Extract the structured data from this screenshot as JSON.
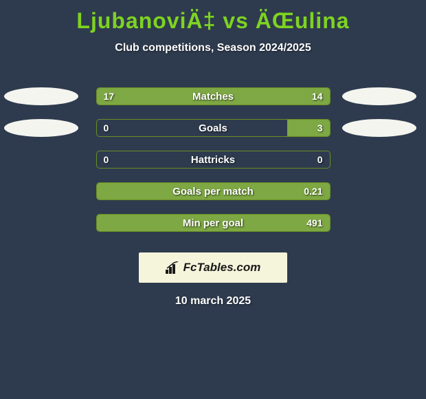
{
  "title": "LjubanoviÄ‡ vs ÄŒulina",
  "subtitle": "Club competitions, Season 2024/2025",
  "colors": {
    "background": "#2e3b4e",
    "accent": "#7ed321",
    "bar_fill": "#7da843",
    "bar_border": "#6b8e23",
    "ellipse": "#f5f5f0",
    "logo_bg": "#f5f5dc",
    "text": "#ffffff"
  },
  "stats": [
    {
      "label": "Matches",
      "left_value": "17",
      "right_value": "14",
      "left_fill_pct": 55,
      "right_fill_pct": 45,
      "show_ellipses": true
    },
    {
      "label": "Goals",
      "left_value": "0",
      "right_value": "3",
      "left_fill_pct": 0,
      "right_fill_pct": 18,
      "show_ellipses": true
    },
    {
      "label": "Hattricks",
      "left_value": "0",
      "right_value": "0",
      "left_fill_pct": 0,
      "right_fill_pct": 0,
      "show_ellipses": false
    },
    {
      "label": "Goals per match",
      "left_value": "",
      "right_value": "0.21",
      "left_fill_pct": 0,
      "right_fill_pct": 100,
      "show_ellipses": false
    },
    {
      "label": "Min per goal",
      "left_value": "",
      "right_value": "491",
      "left_fill_pct": 0,
      "right_fill_pct": 100,
      "show_ellipses": false
    }
  ],
  "logo_text": "FcTables.com",
  "date": "10 march 2025"
}
